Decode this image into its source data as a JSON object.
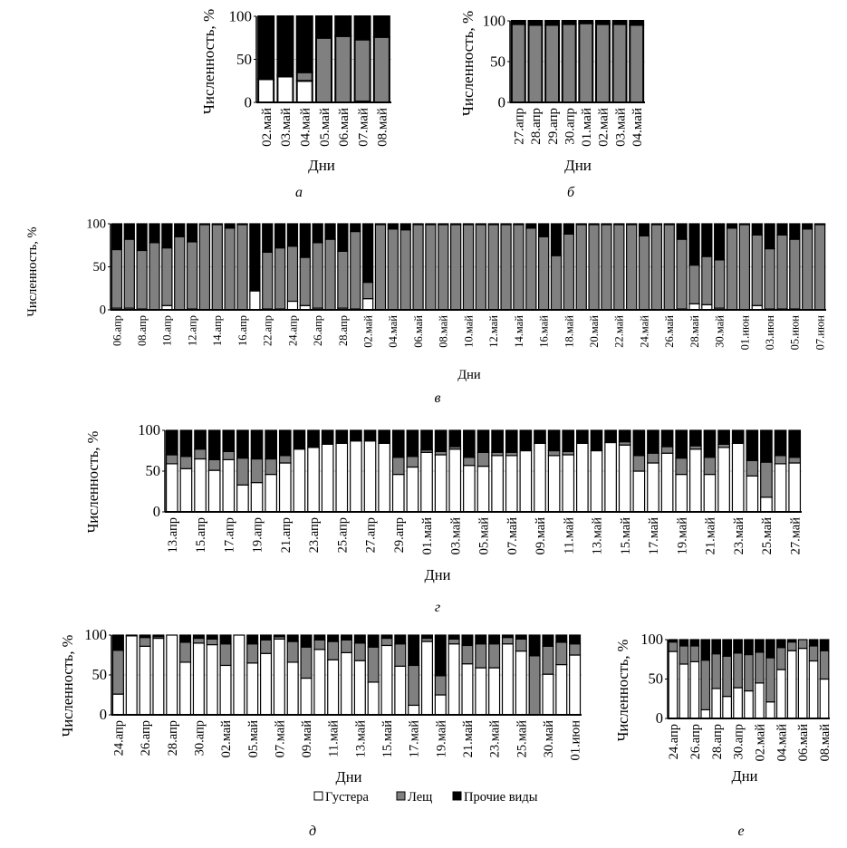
{
  "legend": {
    "items": [
      {
        "label": "Густера",
        "color": "#ffffff"
      },
      {
        "label": "Лещ",
        "color": "#808080"
      },
      {
        "label": "Прочие виды",
        "color": "#000000"
      }
    ]
  },
  "chart_data": [
    {
      "type": "bar",
      "stacked": true,
      "panel": "а",
      "ylabel": "Численность, %",
      "xlabel": "Дни",
      "ylim": [
        0,
        100
      ],
      "yticks": [
        0,
        50,
        100
      ],
      "categories": [
        "02.май",
        "03.май",
        "04.май",
        "05.май",
        "06.май",
        "07.май",
        "08.май"
      ],
      "series": [
        {
          "name": "Густера",
          "values": [
            27,
            30,
            25,
            0,
            0,
            1,
            0
          ]
        },
        {
          "name": "Лещ",
          "values": [
            0,
            2,
            10,
            75,
            77,
            72,
            76
          ]
        },
        {
          "name": "Прочие виды",
          "values": [
            73,
            68,
            65,
            25,
            23,
            27,
            24
          ]
        }
      ]
    },
    {
      "type": "bar",
      "stacked": true,
      "panel": "б",
      "ylabel": "Численность, %",
      "xlabel": "Дни",
      "ylim": [
        0,
        100
      ],
      "yticks": [
        0,
        50,
        100
      ],
      "categories": [
        "27.апр",
        "28.апр",
        "29.апр",
        "30.апр",
        "01.май",
        "02.май",
        "03.май",
        "04.май"
      ],
      "series": [
        {
          "name": "Густера",
          "values": [
            0,
            0,
            0,
            0,
            0,
            0,
            0,
            0
          ]
        },
        {
          "name": "Лещ",
          "values": [
            96,
            95,
            95,
            96,
            97,
            96,
            96,
            95
          ]
        },
        {
          "name": "Прочие виды",
          "values": [
            4,
            5,
            5,
            4,
            3,
            4,
            4,
            5
          ]
        }
      ]
    },
    {
      "type": "bar",
      "stacked": true,
      "panel": "в",
      "ylabel": "Численность, %",
      "xlabel": "Дни",
      "ylim": [
        0,
        100
      ],
      "yticks": [
        0,
        50,
        100
      ],
      "categories": [
        "06.апр",
        "",
        "08.апр",
        "",
        "10.апр",
        "",
        "12.апр",
        "",
        "14.апр",
        "",
        "16.апр",
        "",
        "22.апр",
        "",
        "24.апр",
        "",
        "26.апр",
        "",
        "28.апр",
        "",
        "02.май",
        "",
        "04.май",
        "",
        "06.май",
        "",
        "08.май",
        "",
        "10.май",
        "",
        "12.май",
        "",
        "14.май",
        "",
        "16.май",
        "",
        "18.май",
        "",
        "20.май",
        "",
        "22.май",
        "",
        "24.май",
        "",
        "26.май",
        "",
        "28.май",
        "",
        "30.май",
        "",
        "01.июн",
        "",
        "03.июн",
        "",
        "05.июн",
        "",
        "07.июн"
      ],
      "series": [
        {
          "name": "Густера",
          "values": [
            2,
            2,
            1,
            0,
            5,
            0,
            1,
            0,
            0,
            0,
            0,
            22,
            1,
            1,
            10,
            5,
            2,
            0,
            2,
            1,
            13,
            0,
            0,
            0,
            0,
            0,
            0,
            0,
            0,
            0,
            0,
            0,
            0,
            0,
            0,
            0,
            0,
            0,
            0,
            0,
            0,
            0,
            0,
            0,
            0,
            1,
            7,
            6,
            2,
            0,
            0,
            5,
            1,
            1,
            1,
            0,
            0
          ]
        },
        {
          "name": "Лещ",
          "values": [
            68,
            80,
            68,
            78,
            67,
            85,
            78,
            99,
            99,
            95,
            99,
            0,
            66,
            71,
            64,
            56,
            76,
            82,
            66,
            90,
            19,
            99,
            94,
            93,
            99,
            99,
            99,
            99,
            99,
            99,
            99,
            99,
            99,
            95,
            85,
            63,
            88,
            99,
            99,
            99,
            99,
            99,
            86,
            99,
            99,
            81,
            45,
            56,
            56,
            95,
            99,
            82,
            70,
            86,
            81,
            94,
            99
          ]
        },
        {
          "name": "Прочие виды",
          "values": [
            30,
            18,
            31,
            22,
            28,
            15,
            21,
            1,
            1,
            5,
            1,
            78,
            33,
            28,
            26,
            39,
            22,
            18,
            32,
            9,
            68,
            1,
            6,
            7,
            1,
            1,
            1,
            1,
            1,
            1,
            1,
            1,
            1,
            5,
            15,
            37,
            12,
            1,
            1,
            1,
            1,
            1,
            14,
            1,
            1,
            18,
            48,
            38,
            42,
            5,
            1,
            13,
            29,
            13,
            18,
            6,
            1
          ]
        }
      ]
    },
    {
      "type": "bar",
      "stacked": true,
      "panel": "г",
      "ylabel": "Численность, %",
      "xlabel": "Дни",
      "ylim": [
        0,
        100
      ],
      "yticks": [
        0,
        50,
        100
      ],
      "categories": [
        "13.апр",
        "",
        "15.апр",
        "",
        "17.апр",
        "",
        "19.апр",
        "",
        "21.апр",
        "",
        "23.апр",
        "",
        "25.апр",
        "",
        "27.апр",
        "",
        "29.апр",
        "",
        "01.май",
        "",
        "03.май",
        "",
        "05.май",
        "",
        "07.май",
        "",
        "09.май",
        "",
        "11.май",
        "",
        "13.май",
        "",
        "15.май",
        "",
        "17.май",
        "",
        "19.май",
        "",
        "21.май",
        "",
        "23.май",
        "",
        "25.май",
        "",
        "27.май"
      ],
      "series": [
        {
          "name": "Густера",
          "values": [
            59,
            53,
            65,
            51,
            64,
            33,
            36,
            46,
            60,
            77,
            79,
            83,
            84,
            87,
            87,
            84,
            46,
            55,
            73,
            70,
            77,
            57,
            56,
            69,
            69,
            75,
            84,
            69,
            70,
            84,
            75,
            85,
            82,
            50,
            60,
            72,
            46,
            77,
            46,
            79,
            84,
            44,
            18,
            59,
            60
          ]
        },
        {
          "name": "Лещ",
          "values": [
            11,
            15,
            12,
            13,
            10,
            33,
            29,
            19,
            9,
            0,
            0,
            0,
            0,
            0,
            0,
            0,
            21,
            13,
            3,
            4,
            3,
            10,
            17,
            4,
            4,
            0,
            0,
            6,
            4,
            0,
            0,
            0,
            4,
            19,
            12,
            8,
            20,
            4,
            21,
            4,
            0,
            19,
            43,
            10,
            7
          ]
        },
        {
          "name": "Прочие виды",
          "values": [
            30,
            32,
            23,
            36,
            26,
            34,
            35,
            35,
            31,
            23,
            21,
            17,
            16,
            13,
            13,
            16,
            33,
            32,
            24,
            26,
            20,
            33,
            27,
            27,
            27,
            25,
            16,
            25,
            26,
            16,
            25,
            15,
            14,
            31,
            28,
            20,
            34,
            19,
            33,
            17,
            16,
            37,
            39,
            31,
            33
          ]
        }
      ]
    },
    {
      "type": "bar",
      "stacked": true,
      "panel": "д",
      "ylabel": "Численность, %",
      "xlabel": "Дни",
      "ylim": [
        0,
        100
      ],
      "yticks": [
        0,
        50,
        100
      ],
      "categories": [
        "24.апр",
        "",
        "26.апр",
        "",
        "28.апр",
        "",
        "30.апр",
        "",
        "02.май",
        "",
        "05.май",
        "",
        "07.май",
        "",
        "09.май",
        "",
        "11.май",
        "",
        "13.май",
        "",
        "15.май",
        "",
        "17.май",
        "",
        "19.май",
        "",
        "21.май",
        "",
        "23.май",
        "",
        "25.май",
        "",
        "30.май",
        "",
        "01.июн"
      ],
      "series": [
        {
          "name": "Густера",
          "values": [
            26,
            99,
            86,
            96,
            100,
            66,
            90,
            88,
            62,
            100,
            65,
            77,
            95,
            66,
            46,
            82,
            69,
            78,
            68,
            41,
            87,
            61,
            12,
            92,
            25,
            89,
            64,
            59,
            59,
            89,
            80,
            0,
            51,
            63,
            75
          ]
        },
        {
          "name": "Лещ",
          "values": [
            55,
            0,
            11,
            2,
            0,
            25,
            6,
            7,
            27,
            0,
            24,
            17,
            3,
            26,
            39,
            12,
            23,
            16,
            22,
            44,
            9,
            28,
            50,
            4,
            24,
            6,
            23,
            30,
            30,
            8,
            15,
            74,
            35,
            28,
            14
          ]
        },
        {
          "name": "Прочие виды",
          "values": [
            19,
            1,
            3,
            2,
            0,
            9,
            4,
            5,
            11,
            0,
            11,
            6,
            2,
            8,
            15,
            6,
            8,
            6,
            10,
            15,
            4,
            11,
            38,
            4,
            51,
            5,
            13,
            11,
            11,
            3,
            5,
            26,
            14,
            9,
            11
          ]
        }
      ]
    },
    {
      "type": "bar",
      "stacked": true,
      "panel": "е",
      "ylabel": "Численность, %",
      "xlabel": "Дни",
      "ylim": [
        0,
        100
      ],
      "yticks": [
        0,
        50,
        100
      ],
      "categories": [
        "24.апр",
        "",
        "26.апр",
        "",
        "28.апр",
        "",
        "30.апр",
        "",
        "02.май",
        "",
        "04.май",
        "",
        "06.май",
        "",
        "08.май"
      ],
      "series": [
        {
          "name": "Густера",
          "values": [
            85,
            69,
            72,
            11,
            38,
            28,
            39,
            35,
            45,
            21,
            62,
            86,
            89,
            73,
            50
          ]
        },
        {
          "name": "Лещ",
          "values": [
            12,
            23,
            20,
            63,
            44,
            51,
            44,
            46,
            39,
            56,
            28,
            11,
            11,
            19,
            36
          ]
        },
        {
          "name": "Прочие виды",
          "values": [
            3,
            8,
            8,
            26,
            18,
            21,
            17,
            19,
            16,
            23,
            10,
            3,
            0,
            8,
            14
          ]
        }
      ]
    }
  ]
}
